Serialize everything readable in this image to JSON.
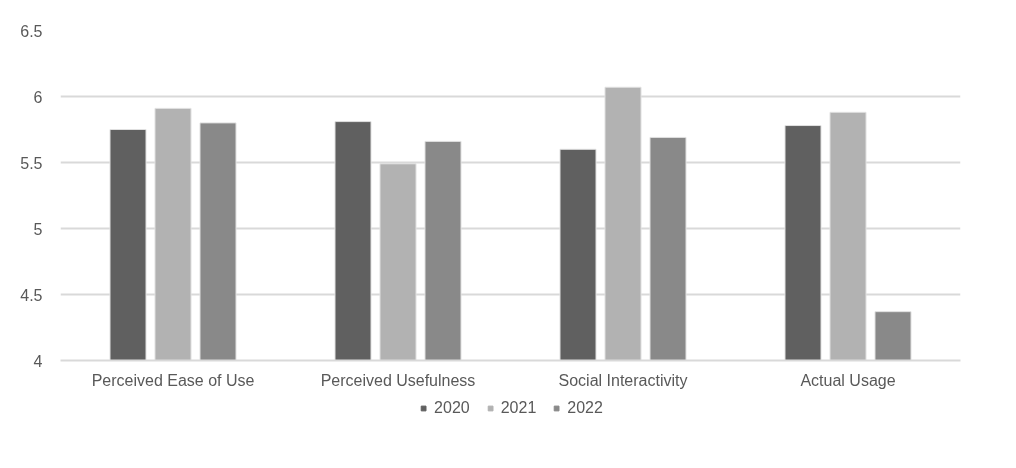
{
  "chart_data": {
    "type": "bar",
    "categories": [
      "Perceived Ease of Use",
      "Perceived Usefulness",
      "Social Interactivity",
      "Actual Usage"
    ],
    "series": [
      {
        "name": "2020",
        "color": "#606060",
        "values": [
          5.75,
          5.81,
          5.6,
          5.78
        ]
      },
      {
        "name": "2021",
        "color": "#b2b2b2",
        "values": [
          5.91,
          5.49,
          6.07,
          5.88
        ]
      },
      {
        "name": "2022",
        "color": "#898989",
        "values": [
          5.8,
          5.66,
          5.69,
          4.37
        ]
      }
    ],
    "ylim": [
      4,
      6.5
    ],
    "yticks": [
      4,
      4.5,
      5,
      5.5,
      6,
      6.5
    ],
    "grid": "y",
    "legend": "bottom"
  }
}
